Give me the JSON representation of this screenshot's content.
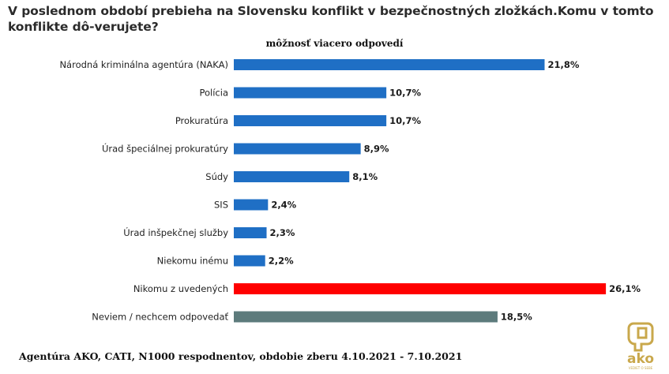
{
  "title": "V poslednom období prebieha na Slovensku konflikt v bezpečnostných zložkách.Komu v tomto konflikte dô-verujete?",
  "subtitle": "môžnosť viacero odpovedí",
  "footer": "Agentúra AKO,  CATI,  N1000 respodnentov,  obdobie zberu 4.10.2021 - 7.10.2021",
  "logo": {
    "text": "ako",
    "tagline": "VEDIEŤ O SEBE",
    "color": "#c9a84c"
  },
  "colors": {
    "default": "#1f6fc5",
    "highlight": "#ff0000",
    "dontknow": "#5d7b7c"
  },
  "chart_data": {
    "type": "bar",
    "orientation": "horizontal",
    "categories": [
      "Národná kriminálna agentúra (NAKA)",
      "Polícia",
      "Prokuratúra",
      "Úrad špeciálnej prokuratúry",
      "Súdy",
      "SIS",
      "Úrad inšpekčnej služby",
      "Niekomu inému",
      "Nikomu z uvedených",
      "Neviem / nechcem odpovedať"
    ],
    "values": [
      21.8,
      10.7,
      10.7,
      8.9,
      8.1,
      2.4,
      2.3,
      2.2,
      26.1,
      18.5
    ],
    "value_labels": [
      "21,8%",
      "10,7%",
      "10,7%",
      "8,9%",
      "8,1%",
      "2,4%",
      "2,3%",
      "2,2%",
      "26,1%",
      "18,5%"
    ],
    "bar_colors": [
      "default",
      "default",
      "default",
      "default",
      "default",
      "default",
      "default",
      "default",
      "highlight",
      "dontknow"
    ],
    "xlim": [
      0,
      26.1
    ],
    "grid": false,
    "legend": "none"
  }
}
